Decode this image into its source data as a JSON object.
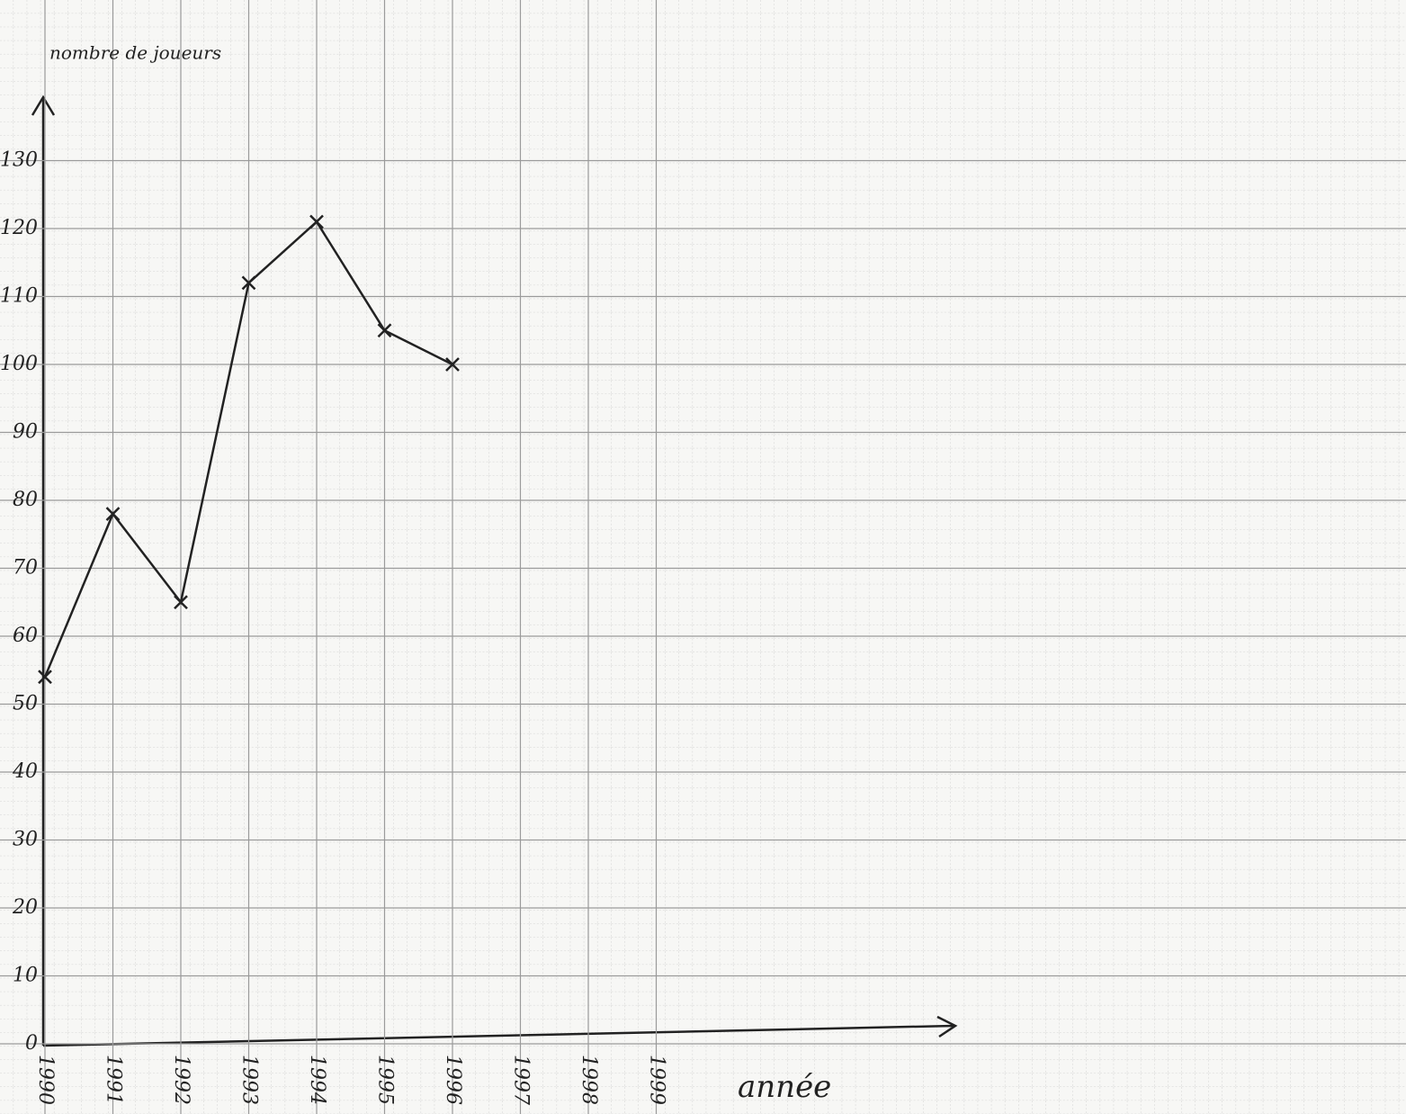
{
  "chart_data": {
    "type": "line",
    "y_label": "nombre de joueurs",
    "x_label": "année",
    "x": [
      1990,
      1991,
      1992,
      1993,
      1994,
      1995,
      1996
    ],
    "series": [
      {
        "name": "nombre de joueurs",
        "color": "#222222",
        "values": [
          54,
          78,
          65,
          112,
          121,
          105,
          100
        ]
      }
    ],
    "xlim": [
      1990,
      2010
    ],
    "xticks": [
      1990,
      1991,
      1992,
      1993,
      1994,
      1995,
      1996,
      1997,
      1998,
      1999
    ],
    "ylim": [
      0,
      150
    ],
    "yticks": [
      0,
      10,
      20,
      30,
      40,
      50,
      60,
      70,
      80,
      90,
      100,
      110,
      120,
      130
    ],
    "grid": true
  }
}
